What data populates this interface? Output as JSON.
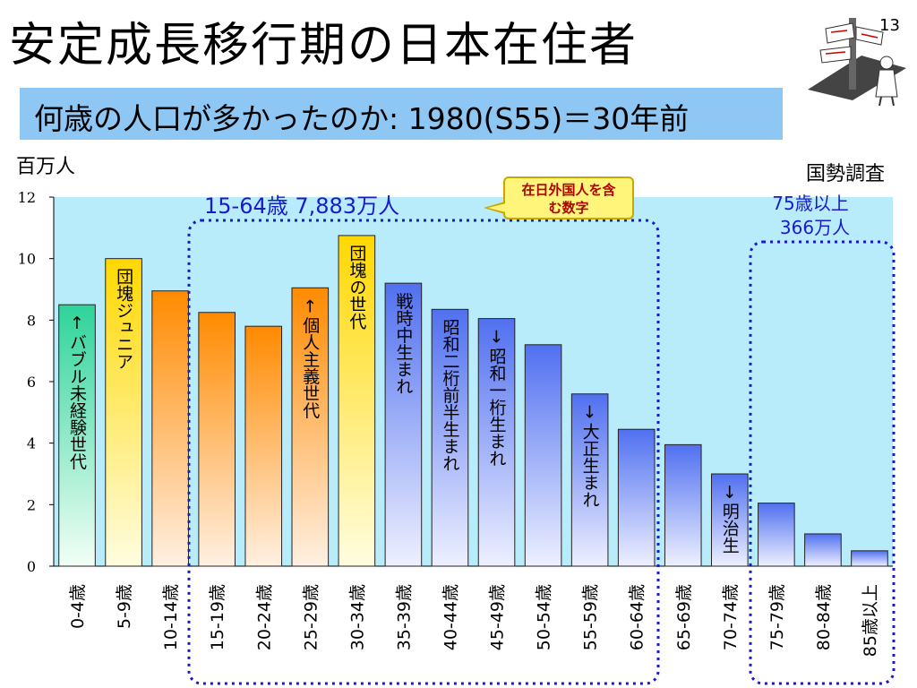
{
  "header": {
    "title": "安定成長移行期の日本在住者",
    "page_number": "13",
    "subtitle": "何歳の人口が多かったのか: 1980(S55)＝30年前"
  },
  "chart_data": {
    "type": "bar",
    "y_unit_label": "百万人",
    "source_label": "国勢調査",
    "ylim": [
      0,
      12
    ],
    "yticks": [
      0,
      2,
      4,
      6,
      8,
      10,
      12
    ],
    "categories": [
      "0-4歳",
      "5-9歳",
      "10-14歳",
      "15-19歳",
      "20-24歳",
      "25-29歳",
      "30-34歳",
      "35-39歳",
      "40-44歳",
      "45-49歳",
      "50-54歳",
      "55-59歳",
      "60-64歳",
      "65-69歳",
      "70-74歳",
      "75-79歳",
      "80-84歳",
      "85歳以上"
    ],
    "values": [
      8.5,
      10.0,
      8.95,
      8.25,
      7.8,
      9.05,
      10.75,
      9.2,
      8.35,
      8.05,
      7.2,
      5.6,
      4.45,
      3.95,
      3.0,
      2.05,
      1.05,
      0.5
    ],
    "bar_annotations": [
      "↑バブル未経験世代",
      "団塊ジュニア",
      "",
      "",
      "",
      "↑個人主義世代",
      "団塊の世代",
      "戦時中生まれ",
      "昭和二桁前半生まれ",
      "↓昭和一桁生まれ",
      "",
      "↓大正生まれ",
      "",
      "",
      "↓明治生",
      "",
      "",
      ""
    ],
    "groups": [
      {
        "label": "15-64歳 7,883万人"
      },
      {
        "label_line1": "75歳以上",
        "label_line2": "366万人"
      }
    ],
    "callout": {
      "line1": "在日外国人を含",
      "line2": "む数字"
    },
    "colors": {
      "plot_bg": "#b8ecfa",
      "group_border": "#1a1acc"
    }
  }
}
